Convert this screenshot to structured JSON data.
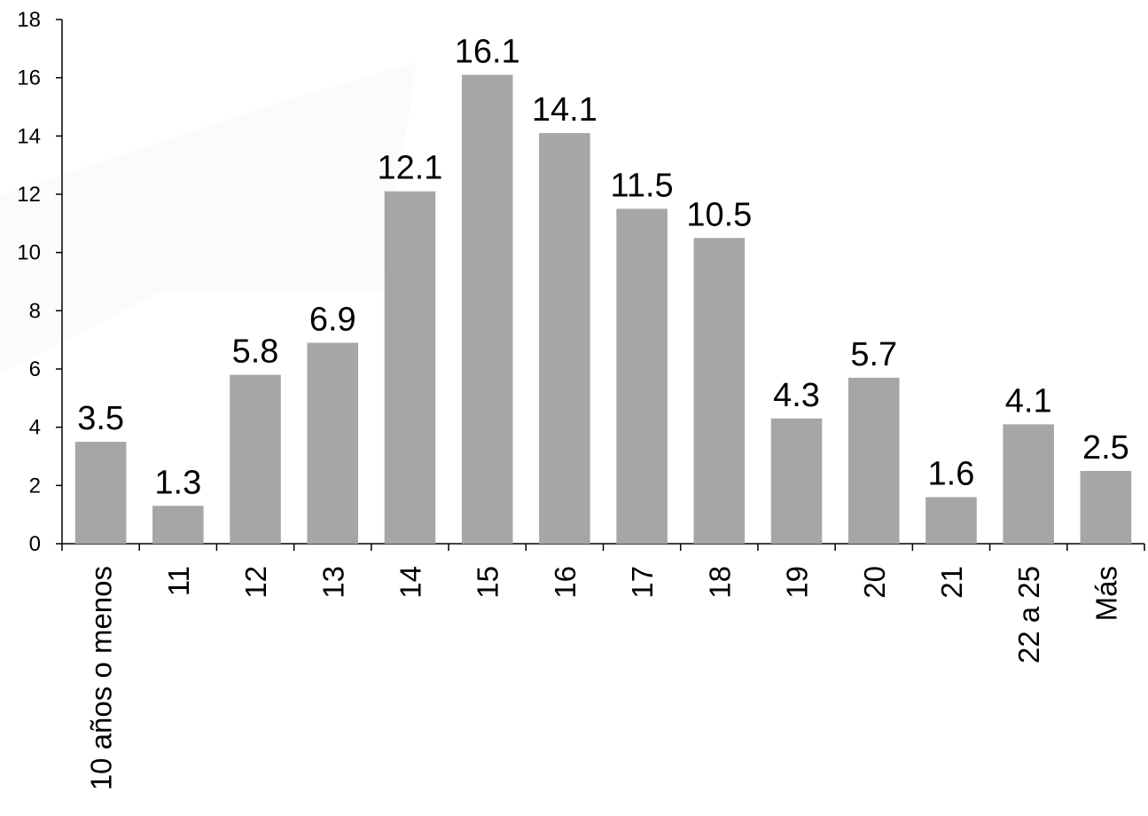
{
  "chart_data": {
    "type": "bar",
    "categories": [
      "10 años o menos",
      "11",
      "12",
      "13",
      "14",
      "15",
      "16",
      "17",
      "18",
      "19",
      "20",
      "21",
      "22 a 25",
      "Más"
    ],
    "values": [
      3.5,
      1.3,
      5.8,
      6.9,
      12.1,
      16.1,
      14.1,
      11.5,
      10.5,
      4.3,
      5.7,
      1.6,
      4.1,
      2.5
    ],
    "data_labels": [
      "3.5",
      "1.3",
      "5.8",
      "6.9",
      "12.1",
      "16.1",
      "14.1",
      "11.5",
      "10.5",
      "4.3",
      "5.7",
      "1.6",
      "4.1",
      "2.5"
    ],
    "title": "",
    "xlabel": "",
    "ylabel": "",
    "ylim": [
      0,
      18
    ],
    "yticks": [
      0,
      2,
      4,
      6,
      8,
      10,
      12,
      14,
      16,
      18
    ],
    "grid": false,
    "legend": "none",
    "bar_color": "#a6a6a6",
    "axis_color": "#000000"
  }
}
